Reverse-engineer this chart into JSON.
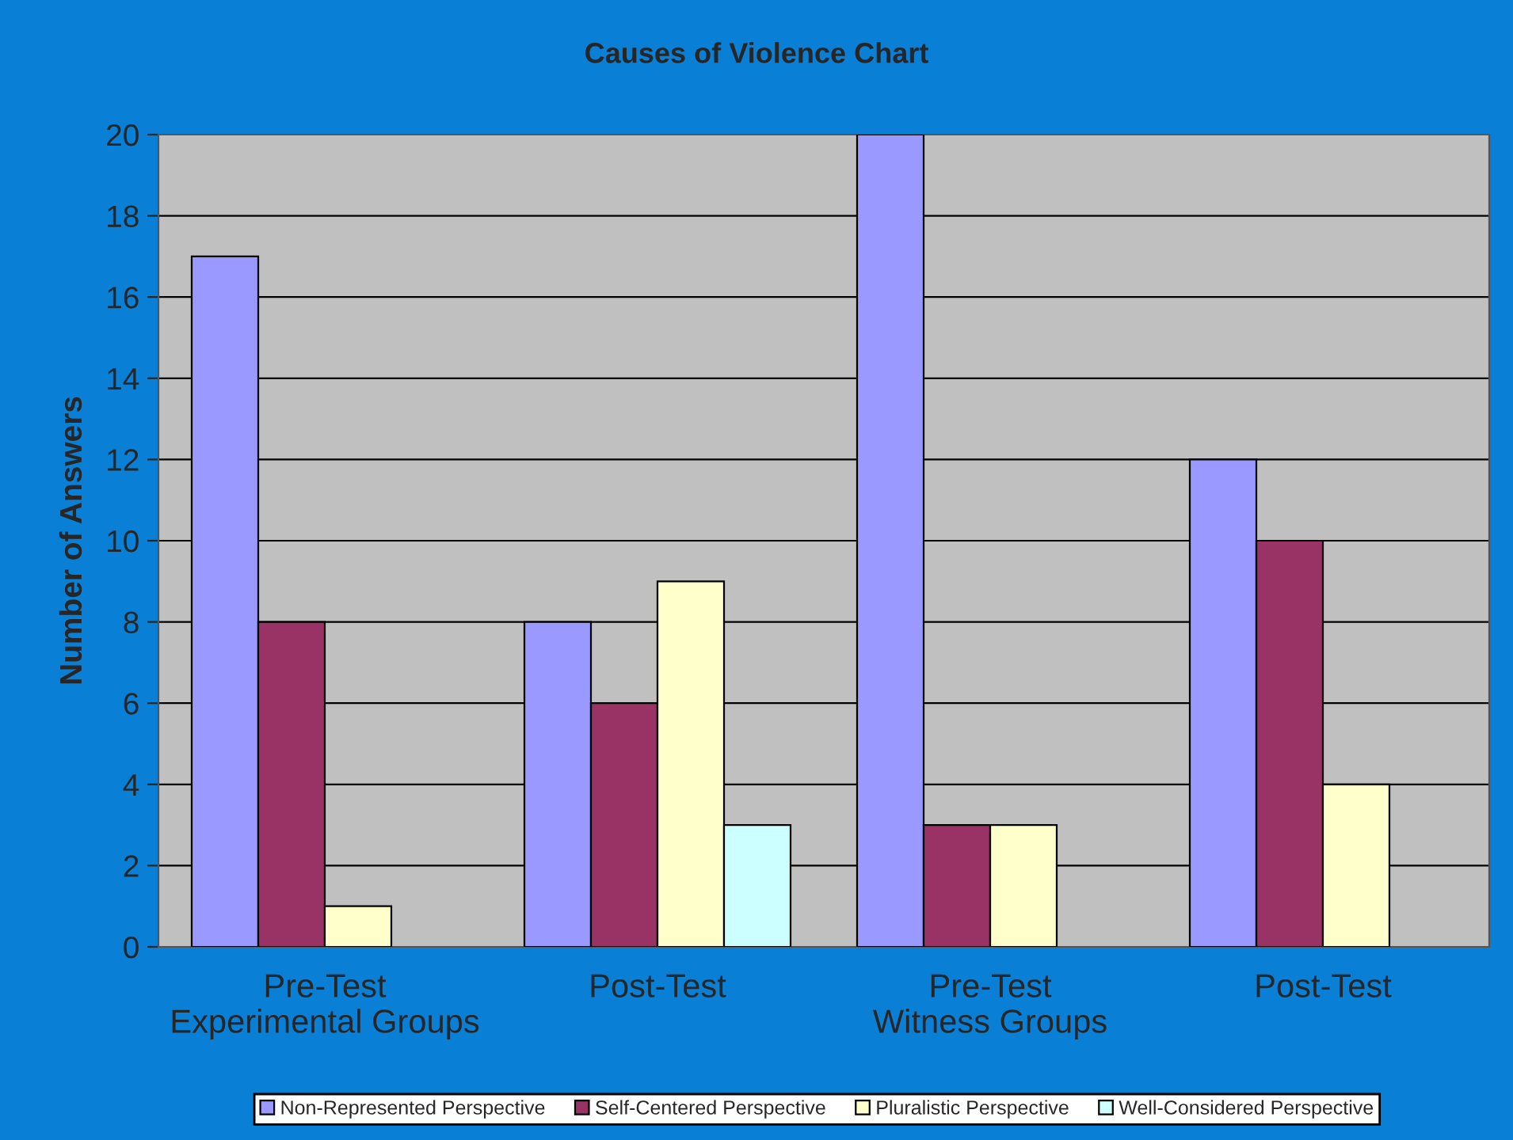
{
  "chart_data": {
    "type": "bar",
    "title": "Causes of Violence Chart",
    "ylabel": "Number of Answers",
    "categories": [
      "Pre-Test\nExperimental Groups",
      "Post-Test",
      "Pre-Test\nWitness Groups",
      "Post-Test"
    ],
    "series": [
      {
        "name": "Non-Represented Perspective",
        "color": "#9999ff",
        "values": [
          17,
          8,
          20,
          12
        ]
      },
      {
        "name": "Self-Centered Perspective",
        "color": "#993366",
        "values": [
          8,
          6,
          3,
          10
        ]
      },
      {
        "name": "Pluralistic Perspective",
        "color": "#ffffcc",
        "values": [
          1,
          9,
          3,
          4
        ]
      },
      {
        "name": "Well-Considered Perspective",
        "color": "#ccffff",
        "values": [
          null,
          3,
          null,
          null
        ]
      }
    ],
    "ylim": [
      0,
      20
    ],
    "yticks": [
      0,
      2,
      4,
      6,
      8,
      10,
      12,
      14,
      16,
      18,
      20
    ],
    "grid": "y",
    "legend": "bottom"
  }
}
